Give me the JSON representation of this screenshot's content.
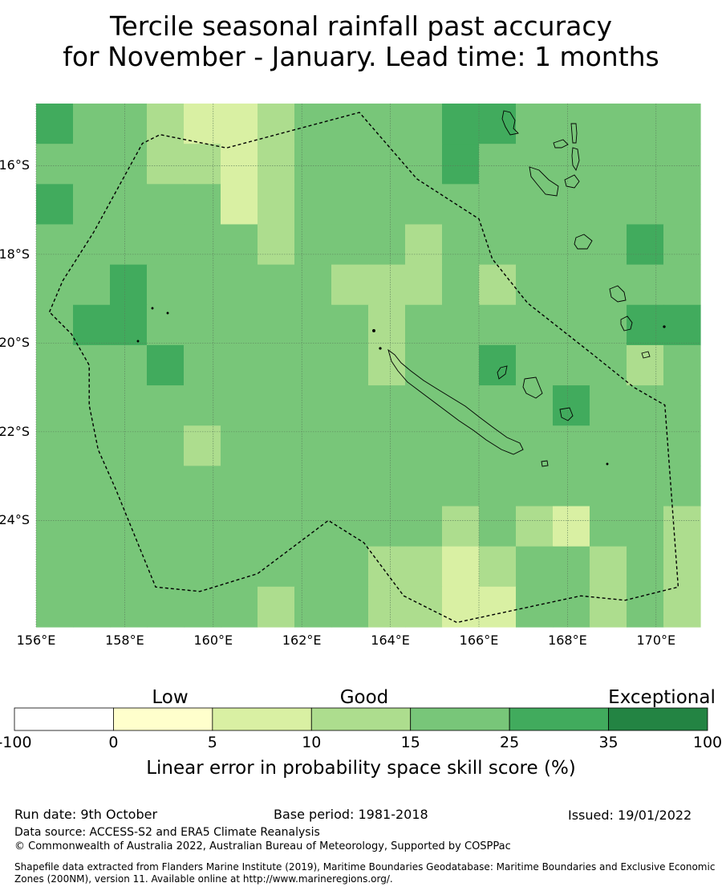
{
  "title_line1": "Tercile seasonal rainfall past accuracy",
  "title_line2": "for November - January. Lead time: 1 months",
  "map": {
    "lat_labels": [
      "16°S",
      "18°S",
      "20°S",
      "22°S",
      "24°S"
    ],
    "lat_values": [
      -16,
      -18,
      -20,
      -22,
      -24
    ],
    "lon_labels": [
      "156°E",
      "158°E",
      "160°E",
      "162°E",
      "164°E",
      "166°E",
      "168°E",
      "170°E"
    ],
    "lon_values": [
      156,
      158,
      160,
      162,
      164,
      166,
      168,
      170
    ],
    "lon_range": [
      156,
      171
    ],
    "lat_range": [
      -26.4,
      -14.6
    ],
    "color_levels": [
      {
        "level": 0,
        "color": "#ffffff"
      },
      {
        "level": 1,
        "color": "#ffffcc"
      },
      {
        "level": 2,
        "color": "#d9f0a3"
      },
      {
        "level": 3,
        "color": "#addd8e"
      },
      {
        "level": 4,
        "color": "#78c679"
      },
      {
        "level": 5,
        "color": "#41ab5d"
      },
      {
        "level": 6,
        "color": "#238443"
      }
    ],
    "grid_cols": 18,
    "grid_rows": 13,
    "grid_levels": [
      [
        5,
        4,
        4,
        3,
        2,
        2,
        3,
        4,
        4,
        4,
        4,
        5,
        5,
        4,
        4,
        4,
        4,
        4
      ],
      [
        4,
        4,
        4,
        3,
        3,
        2,
        3,
        4,
        4,
        4,
        4,
        5,
        4,
        4,
        4,
        4,
        4,
        4
      ],
      [
        5,
        4,
        4,
        4,
        4,
        2,
        3,
        4,
        4,
        4,
        4,
        4,
        4,
        4,
        4,
        4,
        4,
        4
      ],
      [
        4,
        4,
        4,
        4,
        4,
        4,
        3,
        4,
        4,
        4,
        3,
        4,
        4,
        4,
        4,
        4,
        5,
        4
      ],
      [
        4,
        4,
        5,
        4,
        4,
        4,
        4,
        4,
        3,
        3,
        3,
        4,
        3,
        4,
        4,
        4,
        4,
        4
      ],
      [
        4,
        5,
        5,
        4,
        4,
        4,
        4,
        4,
        4,
        3,
        4,
        4,
        4,
        4,
        4,
        4,
        5,
        5
      ],
      [
        4,
        4,
        4,
        5,
        4,
        4,
        4,
        4,
        4,
        3,
        4,
        4,
        5,
        4,
        4,
        4,
        3,
        4
      ],
      [
        4,
        4,
        4,
        4,
        4,
        4,
        4,
        4,
        4,
        4,
        4,
        4,
        4,
        4,
        5,
        4,
        4,
        4
      ],
      [
        4,
        4,
        4,
        4,
        3,
        4,
        4,
        4,
        4,
        4,
        4,
        4,
        4,
        4,
        4,
        4,
        4,
        4
      ],
      [
        4,
        4,
        4,
        4,
        4,
        4,
        4,
        4,
        4,
        4,
        4,
        4,
        4,
        4,
        4,
        4,
        4,
        4
      ],
      [
        4,
        4,
        4,
        4,
        4,
        4,
        4,
        4,
        4,
        4,
        4,
        3,
        4,
        3,
        2,
        4,
        4,
        3
      ],
      [
        4,
        4,
        4,
        4,
        4,
        4,
        4,
        4,
        4,
        3,
        3,
        2,
        3,
        4,
        4,
        3,
        4,
        3
      ],
      [
        4,
        4,
        4,
        4,
        4,
        4,
        3,
        4,
        4,
        3,
        3,
        2,
        2,
        4,
        4,
        3,
        4,
        3
      ]
    ],
    "eez_outline": [
      [
        156.3,
        -19.3
      ],
      [
        156.6,
        -18.6
      ],
      [
        157.3,
        -17.5
      ],
      [
        158.4,
        -15.5
      ],
      [
        158.8,
        -15.3
      ],
      [
        160.3,
        -15.6
      ],
      [
        163.3,
        -14.8
      ],
      [
        164.6,
        -16.3
      ],
      [
        166.0,
        -17.2
      ],
      [
        166.3,
        -18.1
      ],
      [
        167.1,
        -19.1
      ],
      [
        168.5,
        -20.2
      ],
      [
        169.5,
        -21.0
      ],
      [
        170.2,
        -21.4
      ],
      [
        170.5,
        -25.5
      ],
      [
        169.3,
        -25.8
      ],
      [
        168.3,
        -25.7
      ],
      [
        165.5,
        -26.3
      ],
      [
        164.3,
        -25.7
      ],
      [
        163.4,
        -24.5
      ],
      [
        162.6,
        -24.0
      ],
      [
        161.0,
        -25.2
      ],
      [
        159.7,
        -25.6
      ],
      [
        158.7,
        -25.5
      ],
      [
        157.8,
        -23.3
      ],
      [
        157.4,
        -22.4
      ],
      [
        157.2,
        -21.4
      ],
      [
        157.2,
        -20.5
      ],
      [
        156.8,
        -19.8
      ]
    ]
  },
  "colorbar": {
    "category_labels": [
      "Low",
      "Good",
      "Exceptional"
    ],
    "tick_labels": [
      "-100",
      "0",
      "5",
      "10",
      "15",
      "25",
      "35",
      "100"
    ],
    "bins": [
      {
        "from": -100,
        "to": 0,
        "color": "#ffffff"
      },
      {
        "from": 0,
        "to": 5,
        "color": "#ffffcc"
      },
      {
        "from": 5,
        "to": 10,
        "color": "#d9f0a3"
      },
      {
        "from": 10,
        "to": 15,
        "color": "#addd8e"
      },
      {
        "from": 15,
        "to": 25,
        "color": "#78c679"
      },
      {
        "from": 25,
        "to": 35,
        "color": "#41ab5d"
      },
      {
        "from": 35,
        "to": 100,
        "color": "#238443"
      }
    ],
    "title": "Linear error in probability space skill score (%)"
  },
  "footer": {
    "run_date": "Run date: 9th October",
    "base_period": "Base period: 1981-2018",
    "issued": "Issued: 19/01/2022",
    "data_source": "Data source: ACCESS-S2 and ERA5 Climate Reanalysis",
    "copyright": "© Commonwealth of Australia 2022, Australian Bureau of Meteorology, Supported by COSPPac",
    "shapefile": "Shapefile data extracted from Flanders Marine Institute (2019), Maritime Boundaries Geodatabase: Maritime Boundaries and Exclusive Economic Zones (200NM), version 11. Available online at http://www.marineregions.org/."
  }
}
